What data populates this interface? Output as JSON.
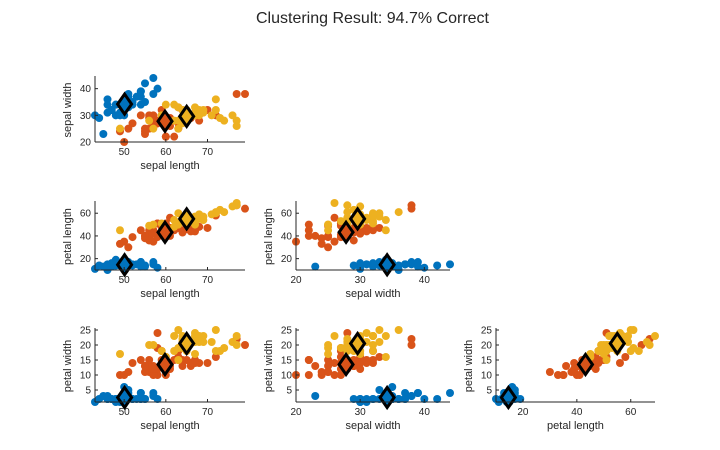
{
  "chart_data": {
    "type": "scatter",
    "title": "Clustering Result: 94.7% Correct",
    "variables": [
      "sepal length",
      "sepal width",
      "petal length",
      "petal width"
    ],
    "limits": [
      [
        43,
        79
      ],
      [
        20,
        44
      ],
      [
        10,
        69
      ],
      [
        1,
        25
      ]
    ],
    "ticks": [
      [
        50,
        60,
        70
      ],
      [
        20,
        30,
        40
      ],
      [
        20,
        40,
        60
      ],
      [
        5,
        10,
        15,
        20,
        25
      ]
    ],
    "panels": [
      [
        0,
        1
      ],
      [
        0,
        2
      ],
      [
        1,
        2
      ],
      [
        0,
        3
      ],
      [
        1,
        3
      ],
      [
        2,
        3
      ]
    ],
    "cluster_colors": [
      "#0072BD",
      "#D95319",
      "#EDB120"
    ],
    "centroid_marker": "diamond",
    "centroids": [
      [
        50.1,
        34.2,
        14.6,
        2.5
      ],
      [
        59.8,
        27.8,
        43.2,
        13.5
      ],
      [
        65.0,
        29.6,
        55.0,
        20.5
      ]
    ],
    "clusters": [
      [
        [
          51,
          35,
          14,
          2
        ],
        [
          49,
          30,
          14,
          2
        ],
        [
          47,
          32,
          13,
          2
        ],
        [
          46,
          31,
          15,
          2
        ],
        [
          50,
          36,
          14,
          2
        ],
        [
          54,
          39,
          17,
          4
        ],
        [
          46,
          34,
          14,
          3
        ],
        [
          50,
          34,
          15,
          2
        ],
        [
          44,
          29,
          14,
          2
        ],
        [
          49,
          31,
          15,
          1
        ],
        [
          54,
          37,
          15,
          2
        ],
        [
          48,
          34,
          16,
          2
        ],
        [
          48,
          30,
          14,
          1
        ],
        [
          43,
          30,
          11,
          1
        ],
        [
          58,
          40,
          12,
          2
        ],
        [
          57,
          44,
          15,
          4
        ],
        [
          54,
          39,
          13,
          4
        ],
        [
          51,
          35,
          14,
          3
        ],
        [
          57,
          38,
          17,
          3
        ],
        [
          51,
          38,
          15,
          3
        ],
        [
          54,
          34,
          17,
          2
        ],
        [
          51,
          37,
          15,
          4
        ],
        [
          46,
          36,
          10,
          2
        ],
        [
          51,
          33,
          17,
          5
        ],
        [
          48,
          34,
          19,
          2
        ],
        [
          50,
          30,
          16,
          2
        ],
        [
          52,
          35,
          15,
          2
        ],
        [
          52,
          34,
          14,
          2
        ],
        [
          47,
          32,
          16,
          2
        ],
        [
          55,
          42,
          14,
          2
        ],
        [
          55,
          35,
          13,
          2
        ],
        [
          45,
          23,
          13,
          3
        ],
        [
          50,
          35,
          16,
          6
        ],
        [
          53,
          37,
          15,
          2
        ],
        [
          50,
          33,
          14,
          2
        ]
      ],
      [
        [
          70,
          32,
          47,
          14
        ],
        [
          64,
          32,
          45,
          15
        ],
        [
          55,
          23,
          40,
          13
        ],
        [
          65,
          28,
          46,
          15
        ],
        [
          57,
          28,
          45,
          13
        ],
        [
          63,
          33,
          47,
          16
        ],
        [
          49,
          24,
          33,
          10
        ],
        [
          66,
          29,
          46,
          13
        ],
        [
          52,
          27,
          39,
          14
        ],
        [
          50,
          20,
          35,
          10
        ],
        [
          59,
          30,
          42,
          15
        ],
        [
          60,
          22,
          40,
          10
        ],
        [
          61,
          29,
          47,
          14
        ],
        [
          56,
          29,
          36,
          13
        ],
        [
          67,
          31,
          44,
          14
        ],
        [
          56,
          30,
          45,
          15
        ],
        [
          58,
          27,
          41,
          10
        ],
        [
          62,
          22,
          45,
          15
        ],
        [
          56,
          25,
          39,
          11
        ],
        [
          59,
          32,
          48,
          18
        ],
        [
          61,
          28,
          40,
          13
        ],
        [
          63,
          25,
          49,
          15
        ],
        [
          61,
          28,
          47,
          12
        ],
        [
          64,
          29,
          43,
          13
        ],
        [
          66,
          30,
          44,
          14
        ],
        [
          68,
          28,
          48,
          14
        ],
        [
          60,
          29,
          45,
          15
        ],
        [
          57,
          26,
          35,
          10
        ],
        [
          55,
          24,
          38,
          11
        ],
        [
          58,
          27,
          39,
          12
        ],
        [
          60,
          27,
          51,
          16
        ],
        [
          54,
          30,
          45,
          15
        ],
        [
          67,
          31,
          47,
          15
        ],
        [
          55,
          25,
          40,
          13
        ],
        [
          57,
          30,
          42,
          12
        ],
        [
          51,
          25,
          30,
          11
        ],
        [
          58,
          27,
          51,
          19
        ],
        [
          60,
          22,
          50,
          15
        ],
        [
          63,
          27,
          49,
          18
        ],
        [
          77,
          38,
          67,
          22
        ],
        [
          79,
          38,
          64,
          20
        ],
        [
          72,
          30,
          58,
          16
        ],
        [
          61,
          26,
          56,
          14
        ],
        [
          58,
          28,
          51,
          24
        ]
      ],
      [
        [
          63,
          33,
          60,
          25
        ],
        [
          71,
          30,
          59,
          21
        ],
        [
          65,
          30,
          58,
          22
        ],
        [
          76,
          30,
          66,
          21
        ],
        [
          73,
          29,
          63,
          18
        ],
        [
          72,
          36,
          61,
          25
        ],
        [
          65,
          32,
          51,
          20
        ],
        [
          64,
          27,
          53,
          19
        ],
        [
          68,
          30,
          55,
          21
        ],
        [
          57,
          25,
          50,
          20
        ],
        [
          64,
          32,
          53,
          23
        ],
        [
          65,
          30,
          55,
          18
        ],
        [
          77,
          26,
          69,
          23
        ],
        [
          69,
          32,
          57,
          23
        ],
        [
          77,
          28,
          67,
          20
        ],
        [
          67,
          33,
          57,
          21
        ],
        [
          72,
          32,
          60,
          18
        ],
        [
          62,
          28,
          48,
          18
        ],
        [
          64,
          28,
          56,
          21
        ],
        [
          74,
          28,
          61,
          19
        ],
        [
          64,
          28,
          56,
          22
        ],
        [
          63,
          28,
          51,
          15
        ],
        [
          69,
          31,
          54,
          21
        ],
        [
          67,
          31,
          56,
          24
        ],
        [
          68,
          32,
          59,
          23
        ],
        [
          67,
          30,
          52,
          23
        ],
        [
          63,
          25,
          50,
          19
        ],
        [
          65,
          30,
          52,
          20
        ],
        [
          62,
          34,
          54,
          23
        ],
        [
          59,
          30,
          51,
          18
        ],
        [
          49,
          25,
          45,
          17
        ],
        [
          60,
          34,
          45,
          16
        ],
        [
          67,
          30,
          50,
          17
        ],
        [
          56,
          28,
          49,
          20
        ]
      ]
    ]
  }
}
